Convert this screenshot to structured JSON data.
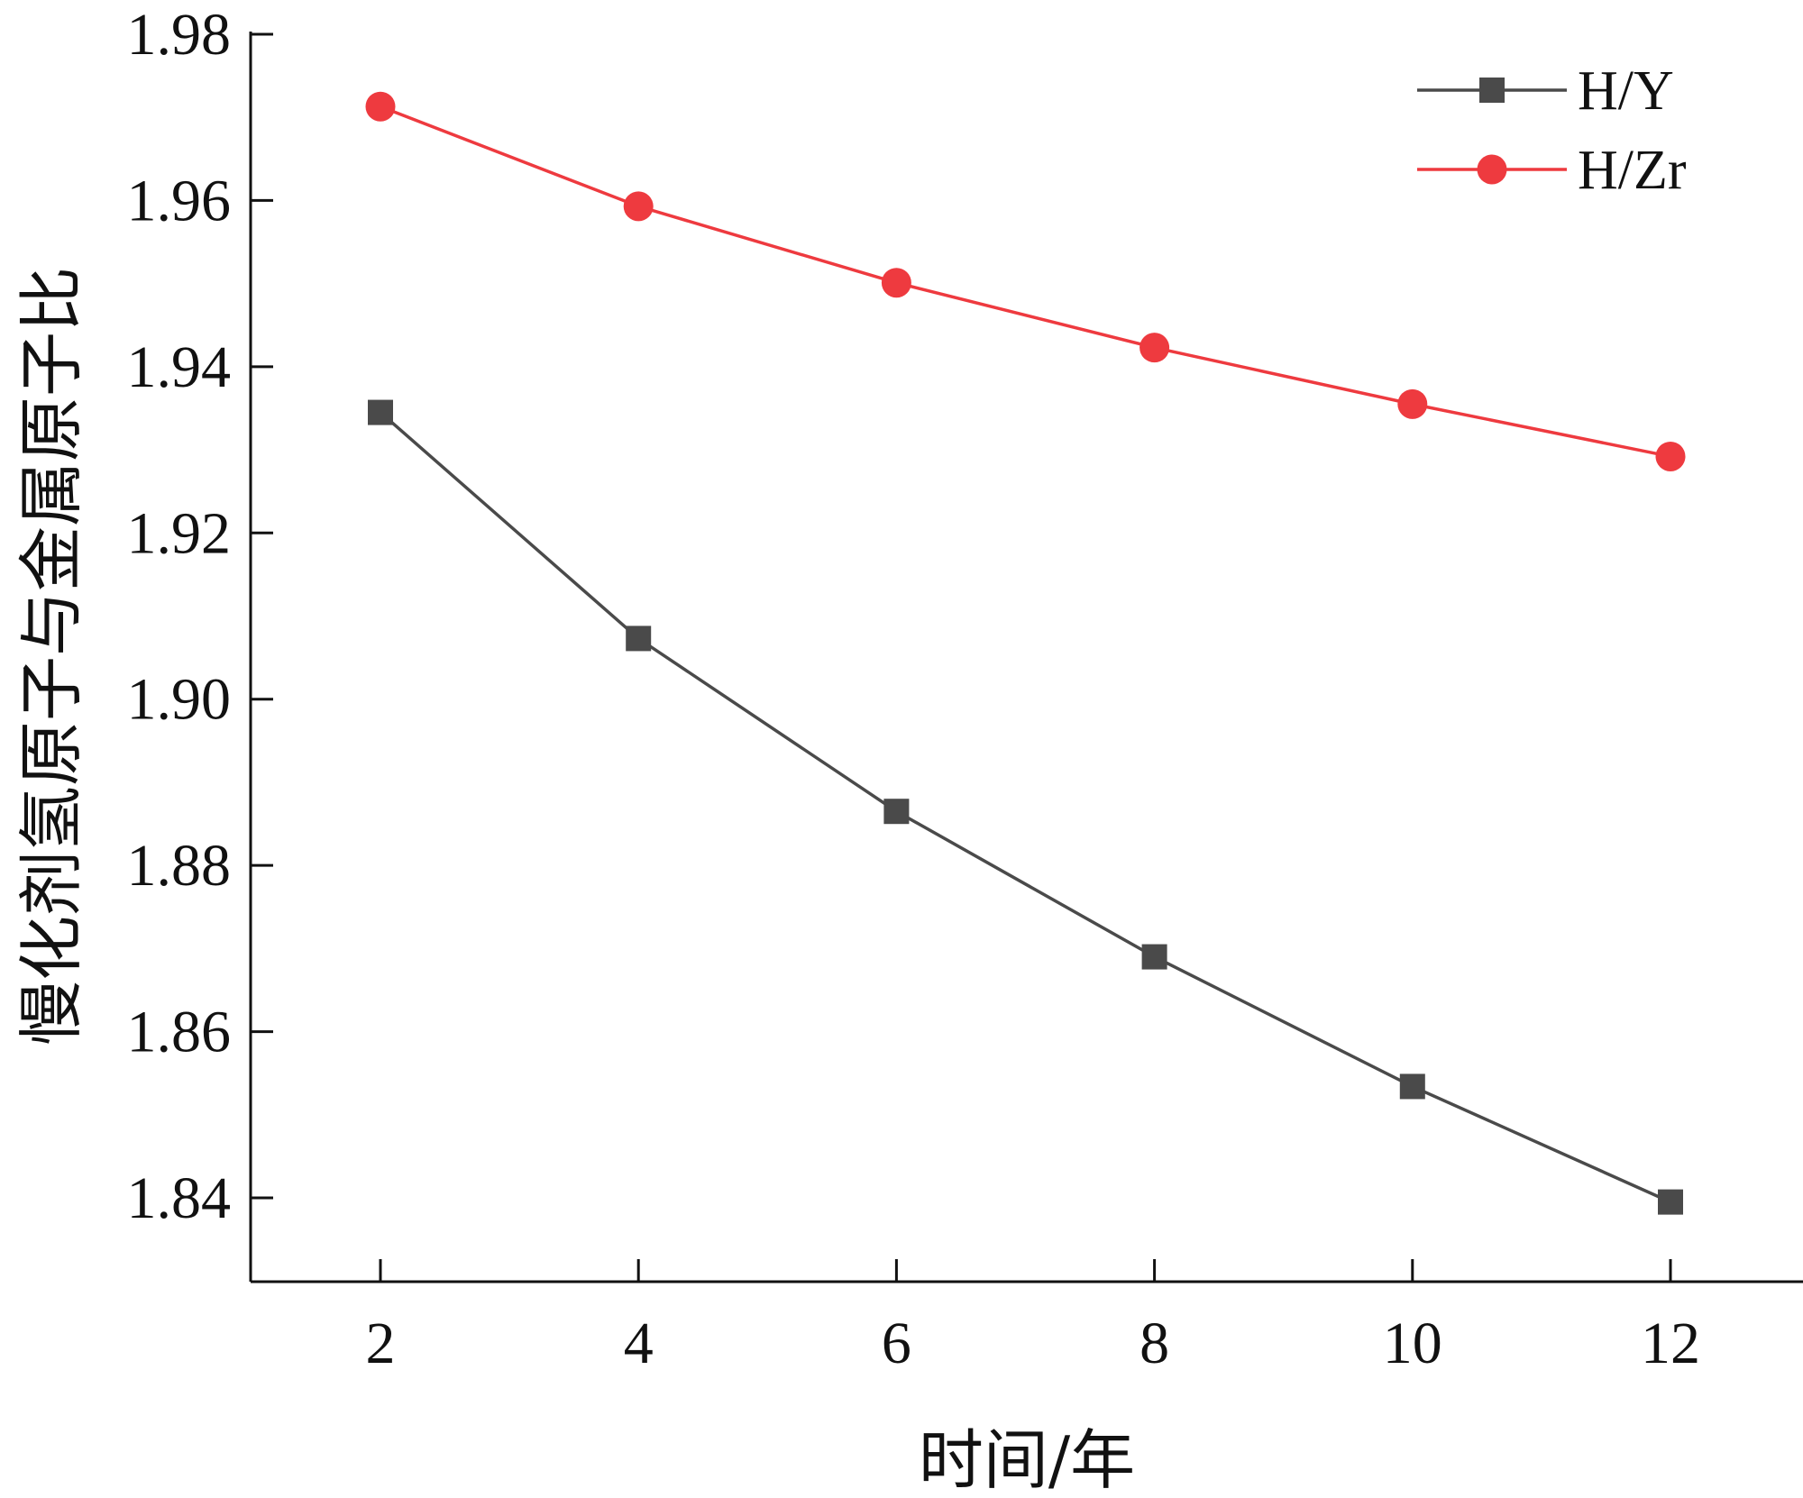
{
  "chart_data": {
    "type": "line",
    "title": "",
    "xlabel": "时间/年",
    "ylabel": "慢化剂氢原子与金属原子比",
    "x": [
      2,
      4,
      6,
      8,
      10,
      12
    ],
    "x_ticks": [
      "2",
      "4",
      "6",
      "8",
      "10",
      "12"
    ],
    "y_ticks": [
      "1.84",
      "1.86",
      "1.88",
      "1.90",
      "1.92",
      "1.94",
      "1.96",
      "1.98"
    ],
    "xlim": [
      1,
      13
    ],
    "ylim": [
      1.83,
      1.98
    ],
    "grid": false,
    "legend_position": "top-right",
    "series": [
      {
        "name": "H/Y",
        "color": "#4a4a4a",
        "marker": "square",
        "values": [
          1.9345,
          1.9073,
          1.8865,
          1.869,
          1.8534,
          1.8395
        ]
      },
      {
        "name": "H/Zr",
        "color": "#ee3a3f",
        "marker": "circle",
        "values": [
          1.9713,
          1.9593,
          1.9501,
          1.9423,
          1.9355,
          1.9292
        ]
      }
    ]
  }
}
